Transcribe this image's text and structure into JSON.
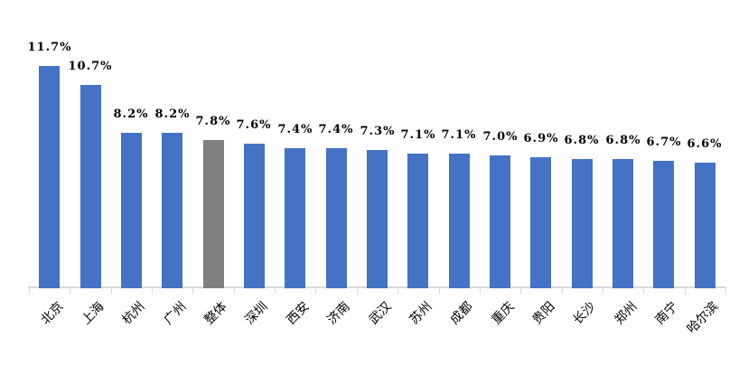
{
  "chart_data": {
    "type": "bar",
    "title": "",
    "xlabel": "",
    "ylabel": "",
    "categories": [
      "北京",
      "上海",
      "杭州",
      "广州",
      "整体",
      "深圳",
      "西安",
      "济南",
      "武汉",
      "苏州",
      "成都",
      "重庆",
      "贵阳",
      "长沙",
      "郑州",
      "南宁",
      "哈尔滨"
    ],
    "values": [
      11.7,
      10.7,
      8.2,
      8.2,
      7.8,
      7.6,
      7.4,
      7.4,
      7.3,
      7.1,
      7.1,
      7.0,
      6.9,
      6.8,
      6.8,
      6.7,
      6.6
    ],
    "labels": [
      "11.7%",
      "10.7%",
      "8.2%",
      "8.2%",
      "7.8%",
      "7.6%",
      "7.4%",
      "7.4%",
      "7.3%",
      "7.1%",
      "7.1%",
      "7.0%",
      "6.9%",
      "6.8%",
      "6.8%",
      "6.7%",
      "6.6%"
    ],
    "highlight_index": 4,
    "highlight_category": "整体",
    "ylim": [
      0,
      12
    ],
    "grid": false,
    "legend": false,
    "data_labels": true,
    "category_label_rotation_deg": 45,
    "colors": {
      "bar_default": "#4472C4",
      "bar_highlight": "#7F7F7F",
      "axis": "#D9D9D9",
      "label_text": "#000000",
      "background": "#FFFFFF"
    }
  }
}
